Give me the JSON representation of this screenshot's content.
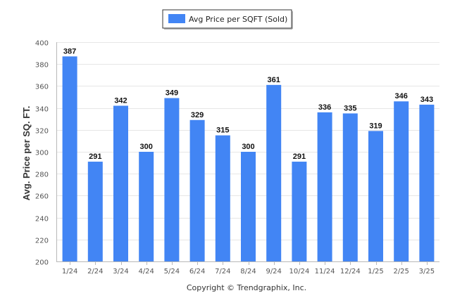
{
  "chart_data": {
    "type": "bar",
    "categories": [
      "1/24",
      "2/24",
      "3/24",
      "4/24",
      "5/24",
      "6/24",
      "7/24",
      "8/24",
      "9/24",
      "10/24",
      "11/24",
      "12/24",
      "1/25",
      "2/25",
      "3/25"
    ],
    "series": [
      {
        "name": "Avg Price per SQFT (Sold)",
        "values": [
          387,
          291,
          342,
          300,
          349,
          329,
          315,
          300,
          361,
          291,
          336,
          335,
          319,
          346,
          343
        ],
        "color": "#4285f4"
      }
    ],
    "xlabel": "",
    "ylabel": "Avg. Price per SQ. FT.",
    "ylim": [
      200,
      400
    ],
    "yticks": [
      200,
      220,
      240,
      260,
      280,
      300,
      320,
      340,
      360,
      380,
      400
    ],
    "grid": true,
    "legend_position": "top-center",
    "data_labels": true,
    "credit": "Copyright © Trendgraphix, Inc."
  }
}
